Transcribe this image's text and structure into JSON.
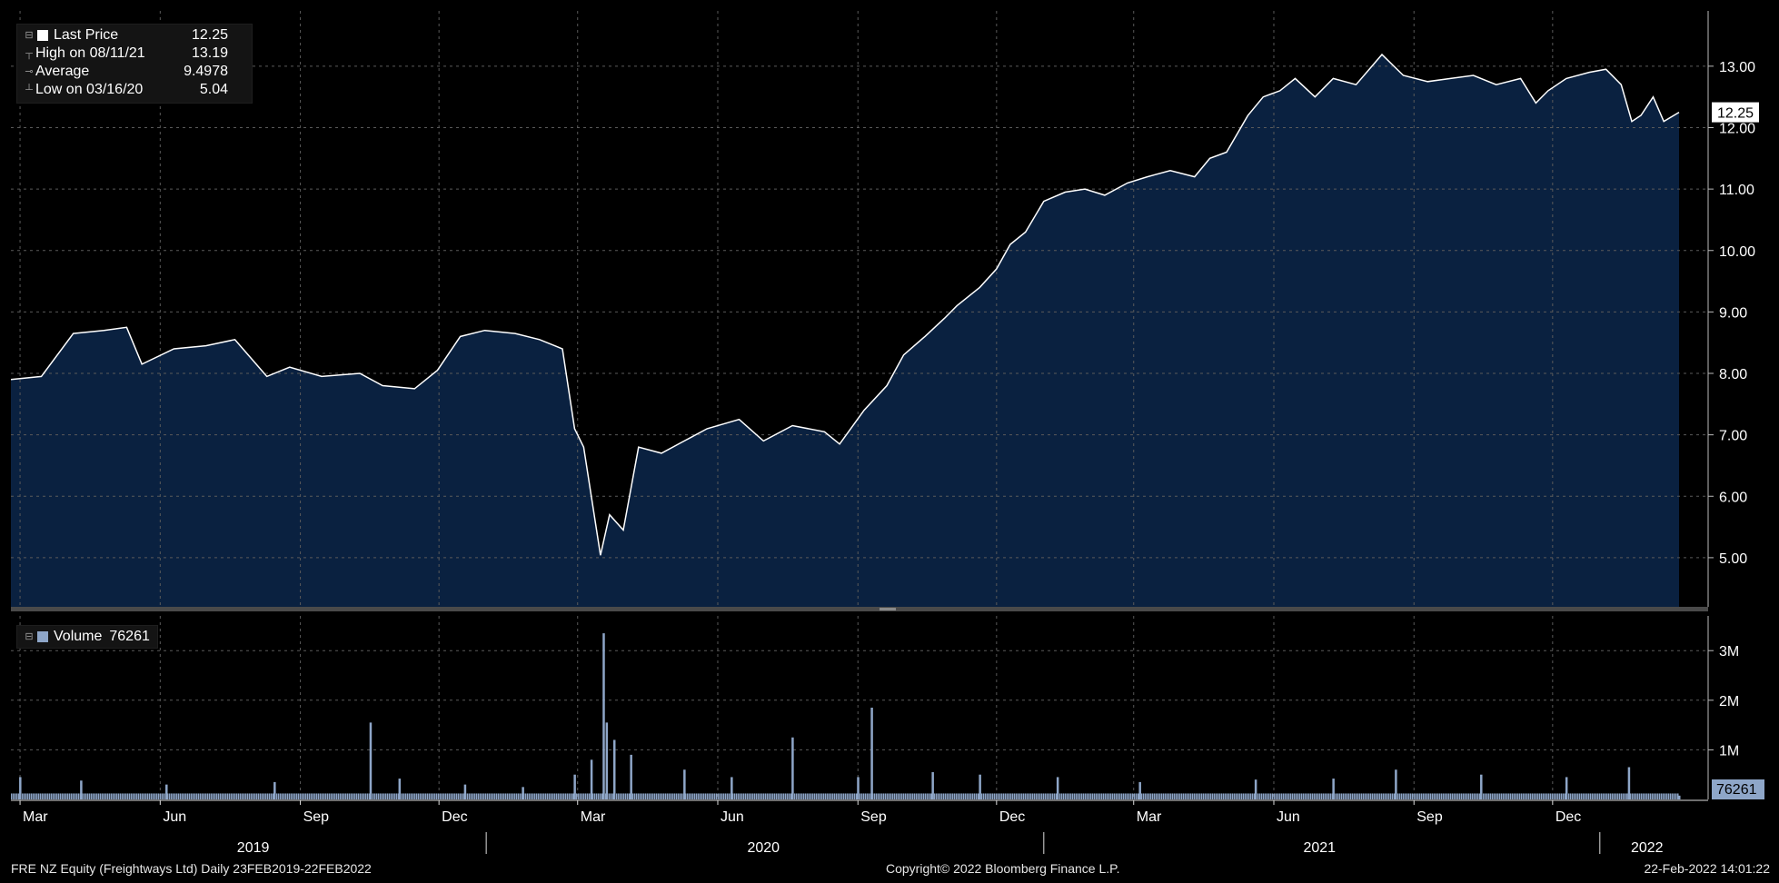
{
  "price_legend": {
    "rows": [
      {
        "label": "Last Price",
        "value": "12.25",
        "icon": "legend-square"
      },
      {
        "label": "High on 08/11/21",
        "value": "13.19",
        "icon": "high-marker"
      },
      {
        "label": "Average",
        "value": "9.4978",
        "icon": "average-marker"
      },
      {
        "label": "Low on 03/16/20",
        "value": "5.04",
        "icon": "low-marker"
      }
    ]
  },
  "volume_legend": {
    "label": "Volume",
    "value": "76261"
  },
  "last_price_tag": "12.25",
  "last_volume_tag": "76261",
  "footer": {
    "left": "FRE NZ Equity (Freightways Ltd)  Daily 23FEB2019-22FEB2022",
    "center": "Copyright© 2022 Bloomberg Finance L.P.",
    "right": "22-Feb-2022 14:01:22"
  },
  "colors": {
    "background": "#000000",
    "price_area_fill": "#0a2140",
    "price_line": "#ffffff",
    "volume_bars": "#8ea6c8",
    "grid": "#5a5a5a"
  },
  "chart_data": [
    {
      "type": "area",
      "title": "",
      "x_range": [
        "2019-02-23",
        "2022-02-22"
      ],
      "y_ticks": [
        "5.00",
        "6.00",
        "7.00",
        "8.00",
        "9.00",
        "10.00",
        "11.00",
        "12.00",
        "13.00"
      ],
      "ylim": [
        4.2,
        13.9
      ],
      "grid": true,
      "series": [
        {
          "name": "Last Price",
          "x": [
            "2019-02-23",
            "2019-03-15",
            "2019-04-05",
            "2019-04-25",
            "2019-05-10",
            "2019-05-20",
            "2019-06-10",
            "2019-07-01",
            "2019-07-20",
            "2019-08-10",
            "2019-08-25",
            "2019-09-15",
            "2019-10-10",
            "2019-10-25",
            "2019-11-15",
            "2019-11-30",
            "2019-12-15",
            "2019-12-31",
            "2020-01-20",
            "2020-02-05",
            "2020-02-20",
            "2020-02-28",
            "2020-03-05",
            "2020-03-16",
            "2020-03-22",
            "2020-03-31",
            "2020-04-10",
            "2020-04-25",
            "2020-05-10",
            "2020-05-25",
            "2020-06-15",
            "2020-07-01",
            "2020-07-20",
            "2020-08-10",
            "2020-08-20",
            "2020-09-05",
            "2020-09-20",
            "2020-10-01",
            "2020-10-15",
            "2020-10-28",
            "2020-11-05",
            "2020-11-20",
            "2020-12-01",
            "2020-12-10",
            "2020-12-20",
            "2021-01-01",
            "2021-01-15",
            "2021-01-28",
            "2021-02-10",
            "2021-02-25",
            "2021-03-10",
            "2021-03-25",
            "2021-04-10",
            "2021-04-20",
            "2021-05-01",
            "2021-05-15",
            "2021-05-25",
            "2021-06-05",
            "2021-06-15",
            "2021-06-28",
            "2021-07-10",
            "2021-07-25",
            "2021-08-11",
            "2021-08-25",
            "2021-09-10",
            "2021-09-25",
            "2021-10-10",
            "2021-10-25",
            "2021-11-10",
            "2021-11-20",
            "2021-11-28",
            "2021-12-10",
            "2021-12-25",
            "2022-01-05",
            "2022-01-15",
            "2022-01-22",
            "2022-01-28",
            "2022-02-05",
            "2022-02-12",
            "2022-02-22"
          ],
          "values": [
            7.9,
            7.95,
            8.65,
            8.7,
            8.75,
            8.15,
            8.4,
            8.45,
            8.55,
            7.95,
            8.1,
            7.95,
            8.0,
            7.8,
            7.75,
            8.05,
            8.6,
            8.7,
            8.65,
            8.55,
            8.4,
            7.1,
            6.8,
            5.04,
            5.7,
            5.45,
            6.8,
            6.7,
            6.9,
            7.1,
            7.25,
            6.9,
            7.15,
            7.05,
            6.85,
            7.4,
            7.8,
            8.3,
            8.6,
            8.9,
            9.1,
            9.4,
            9.7,
            10.1,
            10.3,
            10.8,
            10.95,
            11.0,
            10.9,
            11.1,
            11.2,
            11.3,
            11.2,
            11.5,
            11.6,
            12.2,
            12.5,
            12.6,
            12.8,
            12.5,
            12.8,
            12.7,
            13.19,
            12.85,
            12.75,
            12.8,
            12.85,
            12.7,
            12.8,
            12.4,
            12.6,
            12.8,
            12.9,
            12.95,
            12.7,
            12.1,
            12.2,
            12.5,
            12.1,
            12.25
          ]
        }
      ]
    },
    {
      "type": "bar",
      "title": "",
      "y_ticks": [
        "1M",
        "2M",
        "3M"
      ],
      "ylim": [
        0,
        3700000
      ],
      "series": [
        {
          "name": "Volume",
          "baseline": 120000,
          "x": [
            "2019-03-01",
            "2019-04-10",
            "2019-06-05",
            "2019-08-15",
            "2019-10-17",
            "2019-11-05",
            "2019-12-18",
            "2020-01-25",
            "2020-02-28",
            "2020-03-10",
            "2020-03-18",
            "2020-03-20",
            "2020-03-25",
            "2020-04-05",
            "2020-05-10",
            "2020-06-10",
            "2020-07-20",
            "2020-09-01",
            "2020-09-10",
            "2020-10-20",
            "2020-11-20",
            "2021-01-10",
            "2021-03-05",
            "2021-05-20",
            "2021-07-10",
            "2021-08-20",
            "2021-10-15",
            "2021-12-10",
            "2022-01-20",
            "2022-02-22"
          ],
          "values": [
            450000,
            380000,
            300000,
            350000,
            1550000,
            420000,
            300000,
            250000,
            500000,
            800000,
            3350000,
            1550000,
            1200000,
            900000,
            600000,
            450000,
            1250000,
            450000,
            1850000,
            550000,
            500000,
            450000,
            350000,
            400000,
            420000,
            600000,
            500000,
            450000,
            650000,
            76261
          ]
        }
      ]
    }
  ],
  "x_axis": {
    "months": [
      {
        "label": "Mar",
        "date": "2019-03-01"
      },
      {
        "label": "Jun",
        "date": "2019-06-01"
      },
      {
        "label": "Sep",
        "date": "2019-09-01"
      },
      {
        "label": "Dec",
        "date": "2019-12-01"
      },
      {
        "label": "Mar",
        "date": "2020-03-01"
      },
      {
        "label": "Jun",
        "date": "2020-06-01"
      },
      {
        "label": "Sep",
        "date": "2020-09-01"
      },
      {
        "label": "Dec",
        "date": "2020-12-01"
      },
      {
        "label": "Mar",
        "date": "2021-03-01"
      },
      {
        "label": "Jun",
        "date": "2021-06-01"
      },
      {
        "label": "Sep",
        "date": "2021-09-01"
      },
      {
        "label": "Dec",
        "date": "2021-12-01"
      }
    ],
    "years": [
      {
        "label": "2019",
        "date": "2019-08-01"
      },
      {
        "label": "2020",
        "date": "2020-07-01"
      },
      {
        "label": "2021",
        "date": "2021-07-01"
      },
      {
        "label": "2022",
        "date": "2022-02-01"
      }
    ],
    "year_dividers": [
      "2020-01-01",
      "2021-01-01",
      "2022-01-01"
    ]
  }
}
